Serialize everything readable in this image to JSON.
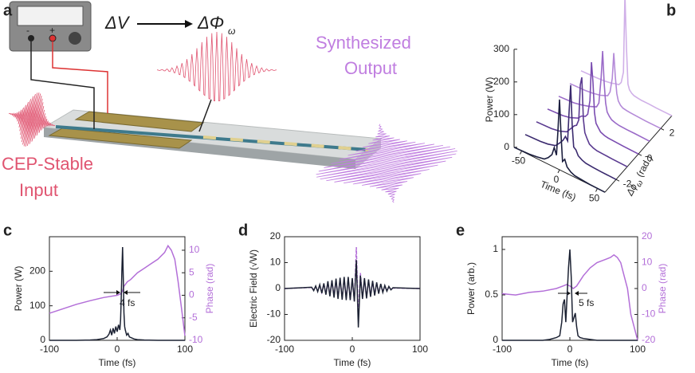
{
  "diagram": {
    "label": "a",
    "voltage": "ΔV",
    "phase": {
      "main": "ΔΦ",
      "sub": "ω"
    },
    "minus": "-",
    "plus": "+",
    "output": [
      "Synthesized",
      "Output"
    ],
    "input": [
      "CEP-Stable",
      "Input"
    ]
  },
  "chart_data": [
    {
      "type": "waterfall",
      "label": "b",
      "ylabel": "Power (W)",
      "xlabel": "Time (fs)",
      "zlabel": {
        "main": "Δϕ",
        "sub": "ω",
        "unit": "(rad.)"
      },
      "xlim": [
        -60,
        60
      ],
      "ylim": [
        0,
        300
      ],
      "zlim": [
        -3,
        3
      ],
      "xticks": [
        -50,
        0,
        50
      ],
      "yticks": [
        0,
        100,
        200,
        300
      ],
      "zticks": [
        -2,
        0,
        2
      ],
      "x": [
        -60,
        -40,
        -30,
        -20,
        -15,
        -10,
        -7,
        -4,
        -2,
        0,
        2,
        4,
        7,
        10,
        15,
        20,
        30,
        40,
        60
      ],
      "series": [
        {
          "z": -3,
          "color": "#1c1f3f",
          "values": [
            0,
            2,
            5,
            10,
            20,
            35,
            60,
            40,
            120,
            215,
            110,
            30,
            40,
            20,
            10,
            5,
            3,
            1,
            0
          ]
        },
        {
          "z": -2,
          "color": "#3a2a6e",
          "values": [
            0,
            2,
            5,
            12,
            25,
            40,
            55,
            45,
            140,
            220,
            100,
            35,
            30,
            15,
            8,
            4,
            2,
            1,
            0
          ]
        },
        {
          "z": -1,
          "color": "#5a3a90",
          "values": [
            0,
            2,
            6,
            15,
            30,
            45,
            50,
            70,
            180,
            205,
            80,
            40,
            25,
            12,
            6,
            3,
            2,
            1,
            0
          ]
        },
        {
          "z": 0,
          "color": "#7a4cb0",
          "values": [
            0,
            3,
            8,
            18,
            30,
            35,
            45,
            90,
            210,
            150,
            60,
            30,
            20,
            10,
            5,
            3,
            2,
            1,
            0
          ]
        },
        {
          "z": 1,
          "color": "#9a6ac8",
          "values": [
            0,
            3,
            8,
            15,
            20,
            25,
            40,
            120,
            205,
            110,
            50,
            25,
            15,
            8,
            4,
            2,
            1,
            1,
            0
          ]
        },
        {
          "z": 2,
          "color": "#b48ad8",
          "values": [
            0,
            2,
            5,
            10,
            15,
            20,
            35,
            80,
            160,
            90,
            40,
            20,
            10,
            5,
            3,
            2,
            1,
            0,
            0
          ]
        },
        {
          "z": 3,
          "color": "#d0b0e8",
          "values": [
            0,
            2,
            4,
            8,
            12,
            15,
            25,
            60,
            300,
            140,
            30,
            15,
            8,
            4,
            2,
            1,
            1,
            0,
            0
          ]
        }
      ]
    },
    {
      "type": "line",
      "label": "c",
      "xlabel": "Time (fs)",
      "ylabel": "Power (W)",
      "y2label": "Phase (rad)",
      "annotation": "4 fs",
      "xlim": [
        -100,
        100
      ],
      "ylim": [
        0,
        300
      ],
      "y2lim": [
        -10,
        13
      ],
      "xticks": [
        -100,
        0,
        100
      ],
      "yticks": [
        0,
        100,
        200
      ],
      "y2ticks": [
        -10,
        -5,
        0,
        5,
        10
      ],
      "series": [
        {
          "axis": "y2",
          "color": "#b36fd8",
          "x": [
            -100,
            -80,
            -60,
            -40,
            -20,
            0,
            5,
            8,
            10,
            15,
            20,
            30,
            40,
            50,
            60,
            70,
            75,
            80,
            85,
            90,
            95,
            100
          ],
          "values": [
            -4,
            -3,
            -2,
            -1.2,
            -0.5,
            0,
            0.3,
            1,
            2,
            3,
            3.5,
            5,
            6,
            7,
            8,
            9.5,
            11,
            10,
            8,
            3,
            -3,
            -9
          ]
        },
        {
          "axis": "y",
          "color": "#1c2233",
          "x": [
            -100,
            -80,
            -60,
            -40,
            -30,
            -20,
            -15,
            -12,
            -10,
            -8,
            -6,
            -4,
            -2,
            0,
            2,
            4,
            5,
            6,
            7,
            8,
            9,
            10,
            11,
            12,
            14,
            16,
            18,
            20,
            25,
            30,
            40,
            60,
            80,
            100
          ],
          "values": [
            0,
            0,
            0,
            1,
            2,
            5,
            10,
            18,
            30,
            15,
            35,
            20,
            40,
            25,
            45,
            30,
            60,
            120,
            200,
            270,
            180,
            80,
            40,
            30,
            15,
            20,
            10,
            8,
            4,
            2,
            1,
            0,
            0,
            0
          ]
        }
      ]
    },
    {
      "type": "line",
      "label": "d",
      "xlabel": "Time (fs)",
      "ylabel": "Electric Field (√W)",
      "xlim": [
        -100,
        100
      ],
      "ylim": [
        -20,
        20
      ],
      "xticks": [
        -100,
        0,
        100
      ],
      "yticks": [
        -20,
        -10,
        0,
        10,
        20
      ],
      "x": [
        -100,
        -60,
        -57,
        -54,
        -51,
        -48,
        -45,
        -42,
        -39,
        -36,
        -33,
        -30,
        -27,
        -24,
        -21,
        -18,
        -15,
        -12,
        -9,
        -6,
        -3,
        0,
        3,
        6,
        9,
        12,
        15,
        18,
        21,
        24,
        27,
        30,
        33,
        36,
        39,
        42,
        45,
        48,
        51,
        54,
        57,
        60,
        100
      ],
      "series": [
        {
          "axis": "y",
          "color": "#b36fd8",
          "dash": true,
          "values": [
            0,
            0.4,
            -0.6,
            0.8,
            -1,
            1.2,
            -1.5,
            1.8,
            -2,
            2.4,
            -2.6,
            2.8,
            -3,
            3.2,
            -3.4,
            3.6,
            -3.8,
            4,
            -4,
            4,
            -4.5,
            3.5,
            -5,
            16,
            -12,
            6,
            -4,
            3.5,
            -3.4,
            3.2,
            -3,
            2.7,
            -2.5,
            2.2,
            -1.9,
            1.6,
            -1.3,
            1,
            -0.8,
            0.6,
            -0.4,
            0.2,
            0
          ]
        },
        {
          "axis": "y",
          "color": "#1c2233",
          "values": [
            0,
            0.5,
            -0.8,
            1,
            -1.2,
            1.5,
            -1.8,
            2,
            -2.4,
            2.8,
            -3,
            3.2,
            -3.5,
            3.8,
            -4,
            4.2,
            -4.3,
            4.5,
            -4.5,
            4.5,
            -4.5,
            4,
            -5,
            11,
            -15,
            5,
            -4,
            4,
            -3.8,
            3.5,
            -3.2,
            3,
            -2.7,
            2.4,
            -2,
            1.8,
            -1.5,
            1.2,
            -1,
            0.8,
            -0.5,
            0.3,
            0
          ]
        }
      ]
    },
    {
      "type": "line",
      "label": "e",
      "xlabel": "Time (fs)",
      "ylabel": "Power (arb.)",
      "y2label": "Phase (rad)",
      "annotation": "5 fs",
      "xlim": [
        -100,
        100
      ],
      "ylim": [
        0,
        1.14
      ],
      "y2lim": [
        -20,
        20
      ],
      "xticks": [
        -100,
        0,
        100
      ],
      "yticks": [
        0,
        0.5,
        1
      ],
      "y2ticks": [
        -20,
        -10,
        0,
        10,
        20
      ],
      "series": [
        {
          "axis": "y2",
          "color": "#b36fd8",
          "x": [
            -100,
            -80,
            -60,
            -40,
            -20,
            -10,
            -5,
            0,
            5,
            10,
            20,
            30,
            40,
            50,
            60,
            65,
            70,
            75,
            80,
            85,
            90,
            95,
            100
          ],
          "values": [
            -2,
            -2.5,
            -1.5,
            -1,
            0,
            1,
            1.5,
            1,
            0,
            1,
            5,
            8,
            10,
            11,
            12,
            13,
            12,
            10,
            5,
            0,
            -10,
            -15,
            -20
          ]
        },
        {
          "axis": "y",
          "color": "#1c2233",
          "x": [
            -100,
            -40,
            -30,
            -20,
            -15,
            -12,
            -10,
            -8,
            -6,
            -4,
            -2,
            0,
            2,
            4,
            6,
            8,
            10,
            12,
            15,
            20,
            30,
            40,
            100
          ],
          "values": [
            0,
            0,
            0.01,
            0.03,
            0.05,
            0.2,
            0.4,
            0.45,
            0.2,
            0.5,
            0.8,
            1,
            0.7,
            0.2,
            0.25,
            0.3,
            0.15,
            0.05,
            0.03,
            0.02,
            0.01,
            0,
            0
          ]
        }
      ]
    }
  ]
}
